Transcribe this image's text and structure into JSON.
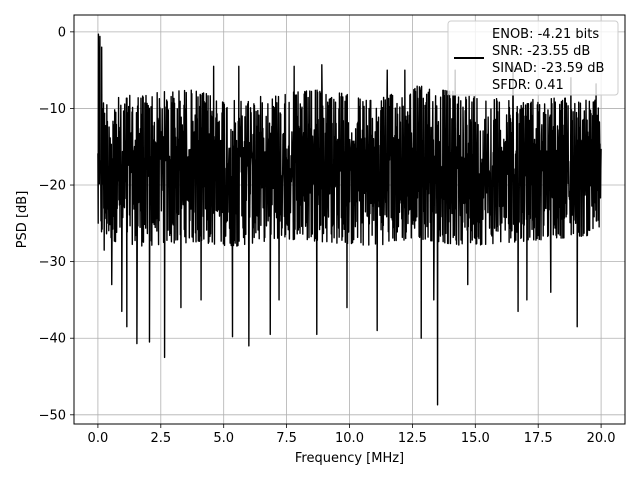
{
  "chart_data": {
    "type": "line",
    "title": "",
    "xlabel": "Frequency [MHz]",
    "ylabel": "PSD [dB]",
    "xlim": [
      -0.95,
      20.95
    ],
    "ylim": [
      -51.2,
      2.2
    ],
    "x_ticks": [
      0.0,
      2.5,
      5.0,
      7.5,
      10.0,
      12.5,
      15.0,
      17.5,
      20.0
    ],
    "x_tick_labels": [
      "0.0",
      "2.5",
      "5.0",
      "7.5",
      "10.0",
      "12.5",
      "15.0",
      "17.5",
      "20.0"
    ],
    "y_ticks": [
      0,
      -10,
      -20,
      -30,
      -40,
      -50
    ],
    "y_tick_labels": [
      "0",
      "−10",
      "−20",
      "−30",
      "−40",
      "−50"
    ],
    "grid": true,
    "legend_position": "top-right",
    "legend_lines": [
      "ENOB: -4.21 bits",
      "SNR: -23.55 dB",
      "SINAD: -23.59 dB",
      "SFDR: 0.41"
    ],
    "series_color": "#000000",
    "grid_color": "#b0b0b0",
    "x_range": [
      0,
      20
    ],
    "y_band_top": [
      -9,
      -8,
      -7.5,
      -9,
      -8,
      -7.5,
      -9,
      -7,
      -8,
      -9,
      -8.5,
      -9
    ],
    "y_band_bottom": [
      -27,
      -28,
      -27.5,
      -28,
      -27,
      -27.5,
      -28,
      -27,
      -28,
      -27.5,
      -27,
      -26.5
    ],
    "spikes": [
      {
        "x": 0.02,
        "y": -0.3
      },
      {
        "x": 0.08,
        "y": -0.6
      },
      {
        "x": 0.15,
        "y": -2.0
      },
      {
        "x": 0.25,
        "y": -28.5
      },
      {
        "x": 0.55,
        "y": -33.0
      },
      {
        "x": 0.95,
        "y": -36.5
      },
      {
        "x": 1.15,
        "y": -38.5
      },
      {
        "x": 1.55,
        "y": -40.7
      },
      {
        "x": 2.05,
        "y": -40.5
      },
      {
        "x": 2.65,
        "y": -42.5
      },
      {
        "x": 3.3,
        "y": -36.0
      },
      {
        "x": 4.1,
        "y": -35.0
      },
      {
        "x": 5.35,
        "y": -39.8
      },
      {
        "x": 6.0,
        "y": -41.0
      },
      {
        "x": 6.85,
        "y": -39.5
      },
      {
        "x": 7.2,
        "y": -35.0
      },
      {
        "x": 8.7,
        "y": -39.5
      },
      {
        "x": 9.9,
        "y": -36.0
      },
      {
        "x": 11.1,
        "y": -39.0
      },
      {
        "x": 12.85,
        "y": -40.0
      },
      {
        "x": 13.35,
        "y": -35.0
      },
      {
        "x": 13.5,
        "y": -48.7
      },
      {
        "x": 14.7,
        "y": -33.0
      },
      {
        "x": 16.7,
        "y": -36.5
      },
      {
        "x": 17.05,
        "y": -35.0
      },
      {
        "x": 18.0,
        "y": -34.0
      },
      {
        "x": 19.05,
        "y": -38.5
      },
      {
        "x": 19.8,
        "y": -33.0
      },
      {
        "x": 4.6,
        "y": -4.5
      },
      {
        "x": 5.6,
        "y": -4.5
      },
      {
        "x": 7.8,
        "y": -4.5
      },
      {
        "x": 8.9,
        "y": -4.3
      },
      {
        "x": 11.5,
        "y": -5.0
      },
      {
        "x": 12.2,
        "y": -5.0
      },
      {
        "x": 14.2,
        "y": -5.0
      },
      {
        "x": 16.5,
        "y": -4.5
      },
      {
        "x": 18.8,
        "y": -6.0
      },
      {
        "x": 19.8,
        "y": -6.8
      }
    ]
  }
}
